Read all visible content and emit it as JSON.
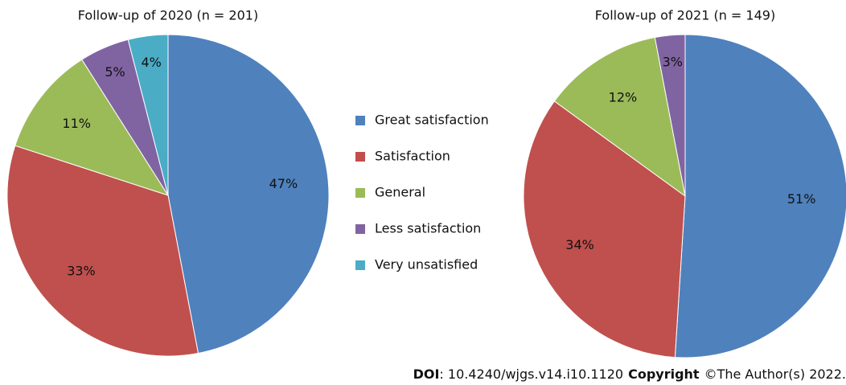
{
  "legend": [
    {
      "name": "Great satisfaction",
      "color": "#4f81bd"
    },
    {
      "name": "Satisfaction",
      "color": "#c0504d"
    },
    {
      "name": "General",
      "color": "#9bbb59"
    },
    {
      "name": "Less satisfaction",
      "color": "#8064a2"
    },
    {
      "name": "Very unsatisfied",
      "color": "#4bacc6"
    }
  ],
  "chart_data": [
    {
      "type": "pie",
      "title": "Follow-up of 2020 (n = 201)",
      "values": [
        47,
        33,
        11,
        5,
        4
      ],
      "value_labels": [
        "47%",
        "33%",
        "11%",
        "5%",
        "4%"
      ]
    },
    {
      "type": "pie",
      "title": "Follow-up of 2021 (n = 149)",
      "values": [
        51,
        34,
        12,
        3
      ],
      "value_labels": [
        "51%",
        "34%",
        "12%",
        "3%"
      ]
    }
  ],
  "footer": {
    "doi_label": "DOI",
    "doi": ": 10.4240/wjgs.v14.i10.1120",
    "copyright_label": "Copyright",
    "copyright": "©The Author(s) 2022."
  }
}
